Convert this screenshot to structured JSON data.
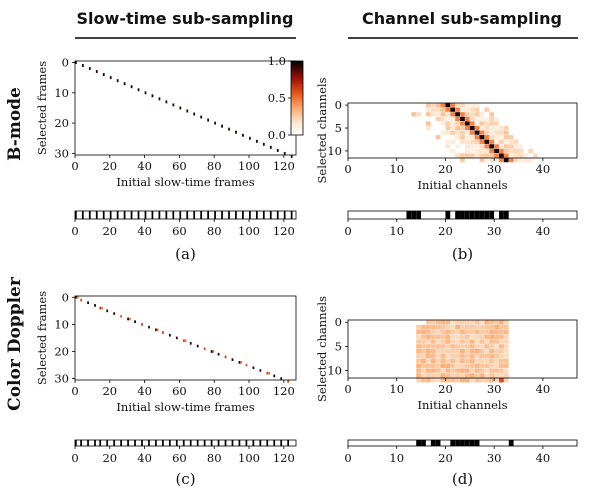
{
  "column_titles": [
    "Slow-time sub-sampling",
    "Channel sub-sampling"
  ],
  "row_labels": [
    "B-mode",
    "Color Doppler"
  ],
  "colorbar": {
    "ticks": [
      "1.0",
      "0.5",
      "0.0"
    ],
    "range": [
      0.0,
      1.0
    ],
    "colormap": "gist_heat_r"
  },
  "chart_data": [
    {
      "type": "heatmap",
      "caption": "(a)",
      "row": "B-mode",
      "column": "Slow-time sub-sampling",
      "xlabel": "Initial slow-time frames",
      "ylabel": "Selected frames",
      "xlim": [
        0,
        127
      ],
      "ylim": [
        0,
        31
      ],
      "xticks": [
        "0",
        "20",
        "40",
        "60",
        "80",
        "100",
        "120"
      ],
      "yticks": [
        "0",
        "10",
        "20",
        "30"
      ],
      "selected_indices": [
        0,
        4,
        8,
        12,
        16,
        20,
        24,
        28,
        32,
        36,
        40,
        44,
        48,
        52,
        56,
        60,
        64,
        68,
        72,
        76,
        80,
        84,
        88,
        92,
        96,
        100,
        104,
        108,
        112,
        116,
        120,
        124
      ],
      "mask_xticks": [
        "0",
        "20",
        "40",
        "60",
        "80",
        "100",
        "120"
      ]
    },
    {
      "type": "heatmap",
      "caption": "(b)",
      "row": "B-mode",
      "column": "Channel sub-sampling",
      "xlabel": "Initial channels",
      "ylabel": "Selected channels",
      "xlim": [
        0,
        47
      ],
      "ylim": [
        0,
        12
      ],
      "xticks": [
        "0",
        "10",
        "20",
        "30",
        "40"
      ],
      "yticks": [
        "0",
        "5",
        "10"
      ],
      "selected_indices": [
        12,
        13,
        14,
        20,
        22,
        23,
        24,
        25,
        26,
        27,
        28,
        29,
        31,
        32
      ],
      "mask_xticks": [
        "0",
        "10",
        "20",
        "30",
        "40"
      ]
    },
    {
      "type": "heatmap",
      "caption": "(c)",
      "row": "Color Doppler",
      "column": "Slow-time sub-sampling",
      "xlabel": "Initial slow-time frames",
      "ylabel": "Selected frames",
      "xlim": [
        0,
        127
      ],
      "ylim": [
        0,
        31
      ],
      "xticks": [
        "0",
        "20",
        "40",
        "60",
        "80",
        "100",
        "120"
      ],
      "yticks": [
        "0",
        "10",
        "20",
        "30"
      ],
      "selected_indices": [
        0,
        3,
        7,
        11,
        14,
        18,
        22,
        26,
        30,
        34,
        38,
        42,
        46,
        50,
        54,
        58,
        62,
        66,
        70,
        74,
        78,
        82,
        86,
        90,
        94,
        98,
        102,
        106,
        110,
        114,
        118,
        122
      ],
      "mask_xticks": [
        "0",
        "20",
        "40",
        "60",
        "80",
        "100",
        "120"
      ]
    },
    {
      "type": "heatmap",
      "caption": "(d)",
      "row": "Color Doppler",
      "column": "Channel sub-sampling",
      "xlabel": "Initial channels",
      "ylabel": "Selected channels",
      "xlim": [
        0,
        47
      ],
      "ylim": [
        0,
        12
      ],
      "xticks": [
        "0",
        "10",
        "20",
        "30",
        "40"
      ],
      "yticks": [
        "0",
        "5",
        "10"
      ],
      "selected_indices": [
        14,
        15,
        17,
        18,
        21,
        22,
        23,
        24,
        25,
        26,
        33
      ],
      "mask_xticks": [
        "0",
        "10",
        "20",
        "30",
        "40"
      ]
    }
  ]
}
